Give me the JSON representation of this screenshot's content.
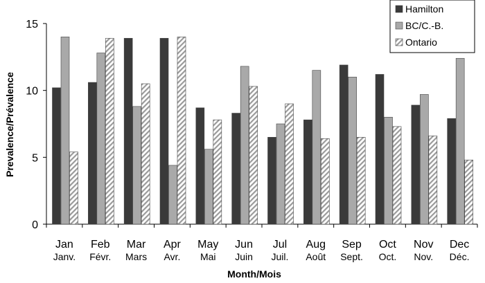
{
  "chart_data": {
    "type": "bar",
    "title": "",
    "xlabel": "Month/Mois",
    "ylabel": "Prevalence/Prévalence",
    "ylim": [
      0,
      15
    ],
    "yticks": [
      0,
      5,
      10,
      15
    ],
    "grid": false,
    "legend_position": "top-right",
    "categories": [
      "Jan",
      "Feb",
      "Mar",
      "Apr",
      "May",
      "Jun",
      "Jul",
      "Aug",
      "Sep",
      "Oct",
      "Nov",
      "Dec"
    ],
    "categories_fr": [
      "Janv.",
      "Févr.",
      "Mars",
      "Avr.",
      "Mai",
      "Juin",
      "Juil.",
      "Août",
      "Sept.",
      "Oct.",
      "Nov.",
      "Déc."
    ],
    "series": [
      {
        "name": "Hamilton",
        "color": "#3a3a3a",
        "pattern": "solid",
        "values": [
          10.2,
          10.6,
          13.9,
          13.9,
          8.7,
          8.3,
          6.5,
          7.8,
          11.9,
          11.2,
          8.9,
          7.9
        ]
      },
      {
        "name": "BC/C.-B.",
        "color": "#a9a9a9",
        "pattern": "solid",
        "values": [
          14.0,
          12.8,
          8.8,
          4.4,
          5.6,
          11.8,
          7.5,
          11.5,
          11.0,
          8.0,
          9.7,
          12.4
        ]
      },
      {
        "name": "Ontario",
        "color": "#ffffff",
        "pattern": "hatched",
        "values": [
          5.4,
          13.9,
          10.5,
          14.0,
          7.8,
          10.3,
          9.0,
          6.4,
          6.5,
          7.3,
          6.6,
          4.8
        ]
      }
    ]
  }
}
